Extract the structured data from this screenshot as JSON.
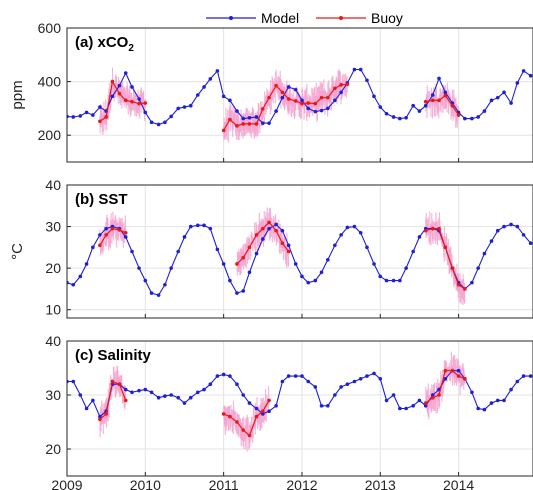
{
  "chart_data": {
    "type": "line",
    "legend": {
      "placement": "top-center",
      "entries": [
        {
          "name": "Model",
          "color": "#1f1fd6"
        },
        {
          "name": "Buoy",
          "color": "#e8191c"
        }
      ]
    },
    "x_axis": {
      "range": [
        2009,
        2014.95
      ],
      "ticks": [
        2009,
        2010,
        2011,
        2012,
        2013,
        2014
      ],
      "tick_labels": [
        "2009",
        "2010",
        "2011",
        "2012",
        "2013",
        "2014"
      ]
    },
    "grid": true,
    "buoy_scatter_color": "#f4a3cf",
    "panels": [
      {
        "title_prefix": "(a) xCO",
        "title_sub": "2",
        "ylabel": "ppm",
        "ylim": [
          100,
          600
        ],
        "yticks": [
          200,
          400,
          600
        ],
        "model": [
          [
            2009.0,
            270
          ],
          [
            2009.08,
            268
          ],
          [
            2009.17,
            272
          ],
          [
            2009.25,
            285
          ],
          [
            2009.33,
            275
          ],
          [
            2009.42,
            305
          ],
          [
            2009.5,
            290
          ],
          [
            2009.58,
            345
          ],
          [
            2009.67,
            385
          ],
          [
            2009.75,
            432
          ],
          [
            2009.83,
            380
          ],
          [
            2009.92,
            335
          ],
          [
            2010.0,
            285
          ],
          [
            2010.08,
            248
          ],
          [
            2010.17,
            240
          ],
          [
            2010.25,
            248
          ],
          [
            2010.33,
            270
          ],
          [
            2010.42,
            300
          ],
          [
            2010.5,
            305
          ],
          [
            2010.58,
            310
          ],
          [
            2010.67,
            350
          ],
          [
            2010.75,
            380
          ],
          [
            2010.83,
            410
          ],
          [
            2010.92,
            440
          ],
          [
            2011.0,
            345
          ],
          [
            2011.08,
            330
          ],
          [
            2011.17,
            290
          ],
          [
            2011.25,
            262
          ],
          [
            2011.33,
            265
          ],
          [
            2011.42,
            268
          ],
          [
            2011.5,
            245
          ],
          [
            2011.58,
            245
          ],
          [
            2011.67,
            290
          ],
          [
            2011.75,
            340
          ],
          [
            2011.83,
            380
          ],
          [
            2011.92,
            370
          ],
          [
            2012.0,
            330
          ],
          [
            2012.08,
            300
          ],
          [
            2012.17,
            288
          ],
          [
            2012.25,
            292
          ],
          [
            2012.33,
            300
          ],
          [
            2012.42,
            330
          ],
          [
            2012.5,
            360
          ],
          [
            2012.58,
            395
          ],
          [
            2012.67,
            445
          ],
          [
            2012.75,
            445
          ],
          [
            2012.83,
            405
          ],
          [
            2012.92,
            345
          ],
          [
            2013.0,
            305
          ],
          [
            2013.08,
            280
          ],
          [
            2013.17,
            268
          ],
          [
            2013.25,
            262
          ],
          [
            2013.33,
            265
          ],
          [
            2013.42,
            310
          ],
          [
            2013.5,
            290
          ],
          [
            2013.58,
            310
          ],
          [
            2013.67,
            350
          ],
          [
            2013.75,
            412
          ],
          [
            2013.83,
            360
          ],
          [
            2013.92,
            320
          ],
          [
            2014.0,
            285
          ],
          [
            2014.08,
            262
          ],
          [
            2014.17,
            262
          ],
          [
            2014.25,
            268
          ],
          [
            2014.33,
            290
          ],
          [
            2014.42,
            330
          ],
          [
            2014.5,
            340
          ],
          [
            2014.58,
            360
          ],
          [
            2014.67,
            320
          ],
          [
            2014.75,
            395
          ],
          [
            2014.83,
            440
          ],
          [
            2014.92,
            422
          ]
        ],
        "buoy": [
          [
            2009.42,
            252
          ],
          [
            2009.5,
            268
          ],
          [
            2009.58,
            400
          ],
          [
            2009.67,
            355
          ],
          [
            2009.75,
            330
          ],
          [
            2009.83,
            325
          ],
          [
            2009.92,
            318
          ],
          [
            2010.0,
            320
          ],
          [
            2011.0,
            218
          ],
          [
            2011.08,
            258
          ],
          [
            2011.17,
            235
          ],
          [
            2011.25,
            242
          ],
          [
            2011.33,
            242
          ],
          [
            2011.42,
            242
          ],
          [
            2011.5,
            298
          ],
          [
            2011.58,
            340
          ],
          [
            2011.67,
            385
          ],
          [
            2011.75,
            360
          ],
          [
            2011.83,
            335
          ],
          [
            2011.92,
            328
          ],
          [
            2012.0,
            318
          ],
          [
            2012.08,
            320
          ],
          [
            2012.17,
            318
          ],
          [
            2012.25,
            340
          ],
          [
            2012.33,
            340
          ],
          [
            2012.42,
            375
          ],
          [
            2012.5,
            388
          ],
          [
            2012.58,
            390
          ],
          [
            2013.58,
            325
          ],
          [
            2013.67,
            330
          ],
          [
            2013.75,
            330
          ],
          [
            2013.83,
            348
          ],
          [
            2013.92,
            310
          ],
          [
            2014.0,
            275
          ]
        ]
      },
      {
        "title_prefix": "(b) SST",
        "title_sub": "",
        "ylabel": "°C",
        "ylim": [
          8,
          40
        ],
        "yticks": [
          10,
          20,
          30,
          40
        ],
        "model": [
          [
            2009.0,
            16.5
          ],
          [
            2009.08,
            16
          ],
          [
            2009.17,
            18
          ],
          [
            2009.25,
            21
          ],
          [
            2009.33,
            25
          ],
          [
            2009.42,
            28
          ],
          [
            2009.5,
            29.5
          ],
          [
            2009.58,
            30
          ],
          [
            2009.67,
            29.5
          ],
          [
            2009.75,
            27.5
          ],
          [
            2009.83,
            24
          ],
          [
            2009.92,
            20
          ],
          [
            2010.0,
            17
          ],
          [
            2010.08,
            14
          ],
          [
            2010.17,
            13.5
          ],
          [
            2010.25,
            16
          ],
          [
            2010.33,
            20
          ],
          [
            2010.42,
            24
          ],
          [
            2010.5,
            27.5
          ],
          [
            2010.58,
            30
          ],
          [
            2010.67,
            30.3
          ],
          [
            2010.75,
            30.3
          ],
          [
            2010.83,
            29.5
          ],
          [
            2010.92,
            24.5
          ],
          [
            2011.0,
            21
          ],
          [
            2011.08,
            17
          ],
          [
            2011.17,
            14
          ],
          [
            2011.25,
            14.5
          ],
          [
            2011.33,
            19
          ],
          [
            2011.42,
            23.5
          ],
          [
            2011.5,
            27
          ],
          [
            2011.58,
            29.5
          ],
          [
            2011.67,
            30.5
          ],
          [
            2011.75,
            29
          ],
          [
            2011.83,
            25.5
          ],
          [
            2011.92,
            21
          ],
          [
            2012.0,
            18
          ],
          [
            2012.08,
            16.5
          ],
          [
            2012.17,
            17
          ],
          [
            2012.25,
            19
          ],
          [
            2012.33,
            22
          ],
          [
            2012.42,
            25.5
          ],
          [
            2012.5,
            28
          ],
          [
            2012.58,
            29.8
          ],
          [
            2012.67,
            30
          ],
          [
            2012.75,
            28.5
          ],
          [
            2012.83,
            25
          ],
          [
            2012.92,
            21
          ],
          [
            2013.0,
            18
          ],
          [
            2013.08,
            17
          ],
          [
            2013.17,
            17
          ],
          [
            2013.25,
            17
          ],
          [
            2013.33,
            20
          ],
          [
            2013.42,
            24
          ],
          [
            2013.5,
            27.5
          ],
          [
            2013.58,
            29.5
          ],
          [
            2013.67,
            29.5
          ],
          [
            2013.75,
            29
          ],
          [
            2013.83,
            25
          ],
          [
            2013.92,
            20
          ],
          [
            2014.0,
            16.5
          ],
          [
            2014.08,
            15
          ],
          [
            2014.17,
            16.5
          ],
          [
            2014.25,
            20
          ],
          [
            2014.33,
            23.5
          ],
          [
            2014.42,
            26.5
          ],
          [
            2014.5,
            29
          ],
          [
            2014.58,
            30
          ],
          [
            2014.67,
            30.5
          ],
          [
            2014.75,
            30
          ],
          [
            2014.83,
            28
          ],
          [
            2014.92,
            26
          ]
        ],
        "buoy": [
          [
            2009.42,
            25.5
          ],
          [
            2009.5,
            28
          ],
          [
            2009.58,
            29.5
          ],
          [
            2009.67,
            29.2
          ],
          [
            2009.75,
            28.5
          ],
          [
            2011.17,
            21
          ],
          [
            2011.25,
            22.5
          ],
          [
            2011.33,
            25
          ],
          [
            2011.42,
            28
          ],
          [
            2011.5,
            29.5
          ],
          [
            2011.58,
            31
          ],
          [
            2011.67,
            29
          ],
          [
            2011.75,
            26
          ],
          [
            2011.83,
            24
          ],
          [
            2013.58,
            29
          ],
          [
            2013.67,
            29.5
          ],
          [
            2013.75,
            29.5
          ],
          [
            2013.83,
            25
          ],
          [
            2013.92,
            20
          ],
          [
            2014.0,
            16
          ],
          [
            2014.08,
            15
          ]
        ]
      },
      {
        "title_prefix": "(c) Salinity",
        "title_sub": "",
        "ylabel": "",
        "ylim": [
          15,
          40
        ],
        "yticks": [
          20,
          30,
          40
        ],
        "model": [
          [
            2009.0,
            32.5
          ],
          [
            2009.08,
            32.5
          ],
          [
            2009.17,
            30
          ],
          [
            2009.25,
            27.5
          ],
          [
            2009.33,
            29
          ],
          [
            2009.42,
            26
          ],
          [
            2009.5,
            27
          ],
          [
            2009.58,
            32
          ],
          [
            2009.67,
            32
          ],
          [
            2009.75,
            31
          ],
          [
            2009.83,
            30.5
          ],
          [
            2009.92,
            30.8
          ],
          [
            2010.0,
            31
          ],
          [
            2010.08,
            30.5
          ],
          [
            2010.17,
            29.5
          ],
          [
            2010.25,
            29.8
          ],
          [
            2010.33,
            30
          ],
          [
            2010.42,
            29.5
          ],
          [
            2010.5,
            28.5
          ],
          [
            2010.58,
            29.5
          ],
          [
            2010.67,
            30.5
          ],
          [
            2010.75,
            31
          ],
          [
            2010.83,
            32
          ],
          [
            2010.92,
            33.5
          ],
          [
            2011.0,
            33.8
          ],
          [
            2011.08,
            33.5
          ],
          [
            2011.17,
            32
          ],
          [
            2011.25,
            30
          ],
          [
            2011.33,
            28.5
          ],
          [
            2011.42,
            27.5
          ],
          [
            2011.5,
            26.5
          ],
          [
            2011.58,
            27
          ],
          [
            2011.67,
            28
          ],
          [
            2011.75,
            32.5
          ],
          [
            2011.83,
            33.5
          ],
          [
            2011.92,
            33.5
          ],
          [
            2012.0,
            33.5
          ],
          [
            2012.08,
            32.5
          ],
          [
            2012.17,
            31.5
          ],
          [
            2012.25,
            28
          ],
          [
            2012.33,
            28
          ],
          [
            2012.42,
            30
          ],
          [
            2012.5,
            31.5
          ],
          [
            2012.58,
            32
          ],
          [
            2012.67,
            32.5
          ],
          [
            2012.75,
            33
          ],
          [
            2012.83,
            33.5
          ],
          [
            2012.92,
            34
          ],
          [
            2013.0,
            33
          ],
          [
            2013.08,
            29
          ],
          [
            2013.17,
            30
          ],
          [
            2013.25,
            27.5
          ],
          [
            2013.33,
            27.5
          ],
          [
            2013.42,
            28
          ],
          [
            2013.5,
            29
          ],
          [
            2013.58,
            28
          ],
          [
            2013.67,
            30
          ],
          [
            2013.75,
            31
          ],
          [
            2013.83,
            33
          ],
          [
            2013.92,
            34.5
          ],
          [
            2014.0,
            34.5
          ],
          [
            2014.08,
            33
          ],
          [
            2014.17,
            30.5
          ],
          [
            2014.25,
            27.5
          ],
          [
            2014.33,
            27.3
          ],
          [
            2014.42,
            28.5
          ],
          [
            2014.5,
            29
          ],
          [
            2014.58,
            29
          ],
          [
            2014.67,
            31
          ],
          [
            2014.75,
            32.5
          ],
          [
            2014.83,
            33.5
          ],
          [
            2014.92,
            33.5
          ]
        ],
        "buoy": [
          [
            2009.42,
            25.5
          ],
          [
            2009.5,
            26.5
          ],
          [
            2009.58,
            32.5
          ],
          [
            2009.67,
            32
          ],
          [
            2009.75,
            29
          ],
          [
            2011.0,
            26.5
          ],
          [
            2011.08,
            26
          ],
          [
            2011.17,
            25
          ],
          [
            2011.25,
            23.5
          ],
          [
            2011.33,
            22.5
          ],
          [
            2011.42,
            26
          ],
          [
            2011.5,
            27
          ],
          [
            2011.58,
            29
          ],
          [
            2013.58,
            28.5
          ],
          [
            2013.67,
            29.5
          ],
          [
            2013.75,
            30
          ],
          [
            2013.83,
            34.5
          ],
          [
            2013.92,
            34.5
          ],
          [
            2014.0,
            33.5
          ],
          [
            2014.08,
            33
          ]
        ]
      }
    ]
  }
}
